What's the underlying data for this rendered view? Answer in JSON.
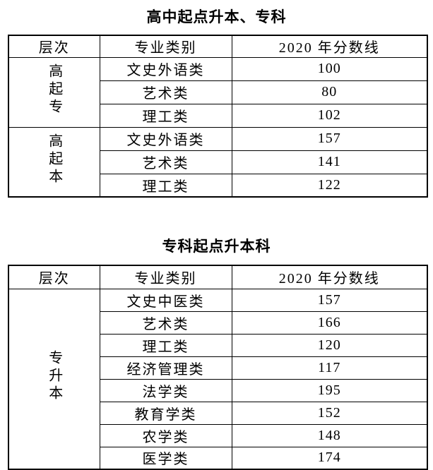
{
  "page": {
    "background": "#ffffff",
    "text_color": "#000000",
    "border_color": "#000000"
  },
  "tables": [
    {
      "title": "高中起点升本、专科",
      "headers": [
        "层次",
        "专业类别",
        "2020 年分数线"
      ],
      "groups": [
        {
          "level": "高起专",
          "rows": [
            {
              "category": "文史外语类",
              "score": "100"
            },
            {
              "category": "艺术类",
              "score": "80"
            },
            {
              "category": "理工类",
              "score": "102"
            }
          ]
        },
        {
          "level": "高起本",
          "rows": [
            {
              "category": "文史外语类",
              "score": "157"
            },
            {
              "category": "艺术类",
              "score": "141"
            },
            {
              "category": "理工类",
              "score": "122"
            }
          ]
        }
      ]
    },
    {
      "title": "专科起点升本科",
      "headers": [
        "层次",
        "专业类别",
        "2020 年分数线"
      ],
      "groups": [
        {
          "level": "专升本",
          "rows": [
            {
              "category": "文史中医类",
              "score": "157"
            },
            {
              "category": "艺术类",
              "score": "166"
            },
            {
              "category": "理工类",
              "score": "120"
            },
            {
              "category": "经济管理类",
              "score": "117"
            },
            {
              "category": "法学类",
              "score": "195"
            },
            {
              "category": "教育学类",
              "score": "152"
            },
            {
              "category": "农学类",
              "score": "148"
            },
            {
              "category": "医学类",
              "score": "174"
            }
          ]
        }
      ]
    }
  ]
}
